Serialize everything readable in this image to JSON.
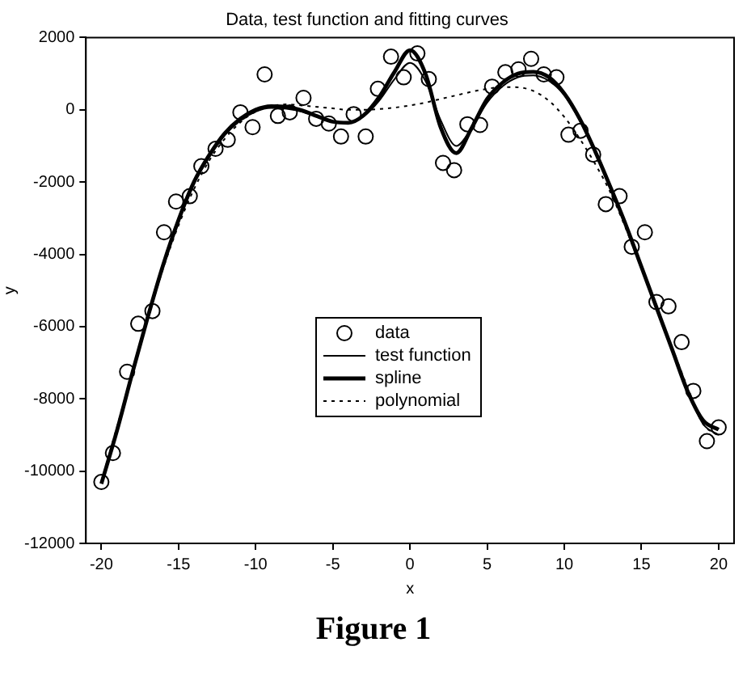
{
  "chart_data": {
    "type": "line",
    "title": "Data, test function and fitting curves",
    "xlabel": "x",
    "ylabel": "y",
    "xlim": [
      -21,
      21
    ],
    "xticks": [
      -20,
      -15,
      -10,
      -5,
      0,
      5,
      10,
      15,
      20
    ],
    "ylim": [
      -12000,
      2000
    ],
    "yticks": [
      -12000,
      -10000,
      -8000,
      -6000,
      -4000,
      -2000,
      0,
      2000
    ],
    "grid": false,
    "legend": "center",
    "annotations": [
      "Figure 1"
    ],
    "series": [
      {
        "name": "data",
        "type": "scatter",
        "marker": "circle",
        "color": "#000000",
        "x": [
          -20,
          -19.25,
          -18.33,
          -17.61,
          -16.69,
          -15.94,
          -15.16,
          -14.27,
          -13.52,
          -12.6,
          -11.81,
          -10.99,
          -10.2,
          -9.42,
          -8.56,
          -7.79,
          -6.9,
          -6.08,
          -5.26,
          -4.47,
          -3.65,
          -2.87,
          -2.08,
          -1.23,
          -0.41,
          0.48,
          1.22,
          2.14,
          2.86,
          3.72,
          4.54,
          5.32,
          6.18,
          7.03,
          7.85,
          8.67,
          9.49,
          10.27,
          11.05,
          11.87,
          12.69,
          13.58,
          14.37,
          15.22,
          15.97,
          16.75,
          17.6,
          18.36,
          19.24,
          20
        ],
        "values": [
          -10300,
          -9500,
          -7250,
          -5920,
          -5570,
          -3390,
          -2540,
          -2390,
          -1560,
          -1080,
          -830,
          -70,
          -480,
          980,
          -170,
          -70,
          330,
          -250,
          -380,
          -740,
          -120,
          -740,
          580,
          1470,
          900,
          1560,
          850,
          -1470,
          -1670,
          -400,
          -420,
          640,
          1040,
          1120,
          1410,
          980,
          900,
          -690,
          -580,
          -1240,
          -2610,
          -2390,
          -3790,
          -3390,
          -5320,
          -5440,
          -6430,
          -7780,
          -9170,
          -8790
        ]
      },
      {
        "name": "test function",
        "type": "line",
        "marker": "none",
        "line_style": "solid",
        "color": "#000000",
        "x": [
          -20,
          -19,
          -18,
          -17,
          -16,
          -15,
          -14,
          -13,
          -12,
          -11,
          -10,
          -9,
          -8,
          -7,
          -6,
          -5,
          -4,
          -3,
          -2,
          -1,
          0,
          1,
          2,
          3,
          4,
          5,
          6,
          7,
          8,
          9,
          10,
          11,
          12,
          13,
          14,
          15,
          16,
          17,
          18,
          19,
          20
        ],
        "values": [
          -10300,
          -8850,
          -7300,
          -5800,
          -4350,
          -3100,
          -2050,
          -1300,
          -700,
          -300,
          -50,
          50,
          30,
          -50,
          -200,
          -330,
          -360,
          -180,
          250,
          850,
          1300,
          800,
          -300,
          -1000,
          -500,
          200,
          650,
          900,
          950,
          800,
          400,
          -300,
          -1150,
          -2150,
          -3200,
          -4350,
          -5500,
          -6650,
          -7800,
          -8700,
          -9000
        ]
      },
      {
        "name": "spline",
        "type": "line",
        "marker": "none",
        "line_style": "solid",
        "color": "#000000",
        "x": [
          -20,
          -19,
          -18,
          -17,
          -16,
          -15,
          -14,
          -13,
          -12,
          -11,
          -10,
          -9,
          -8,
          -7,
          -6,
          -5,
          -4,
          -3,
          -2,
          -1,
          0,
          1,
          2,
          3,
          4,
          5,
          6,
          7,
          8,
          9,
          10,
          11,
          12,
          13,
          14,
          15,
          16,
          17,
          18,
          19,
          20
        ],
        "values": [
          -10350,
          -8900,
          -7300,
          -5750,
          -4300,
          -3050,
          -2000,
          -1250,
          -650,
          -250,
          0,
          100,
          80,
          -20,
          -180,
          -330,
          -360,
          -150,
          350,
          1050,
          1650,
          1000,
          -500,
          -1200,
          -500,
          300,
          750,
          1000,
          1050,
          900,
          450,
          -250,
          -1150,
          -2150,
          -3200,
          -4350,
          -5500,
          -6650,
          -7800,
          -8600,
          -8850
        ]
      },
      {
        "name": "polynomial",
        "type": "line",
        "marker": "none",
        "line_style": "dotted",
        "color": "#000000",
        "x": [
          -20,
          -19,
          -18,
          -17,
          -16,
          -15,
          -14,
          -13,
          -12,
          -11,
          -10,
          -9,
          -8,
          -7,
          -6,
          -5,
          -4,
          -3,
          -2,
          -1,
          0,
          1,
          2,
          3,
          4,
          5,
          6,
          7,
          8,
          9,
          10,
          11,
          12,
          13,
          14,
          15,
          16,
          17,
          18,
          19,
          20
        ],
        "values": [
          -10300,
          -8800,
          -7300,
          -5800,
          -4400,
          -3200,
          -2200,
          -1400,
          -800,
          -350,
          -50,
          100,
          150,
          120,
          80,
          40,
          0,
          0,
          20,
          60,
          120,
          200,
          300,
          400,
          500,
          580,
          630,
          620,
          520,
          250,
          -200,
          -800,
          -1500,
          -2300,
          -3300,
          -4400,
          -5500,
          -6600,
          -7700,
          -8700,
          -9000
        ]
      }
    ]
  }
}
